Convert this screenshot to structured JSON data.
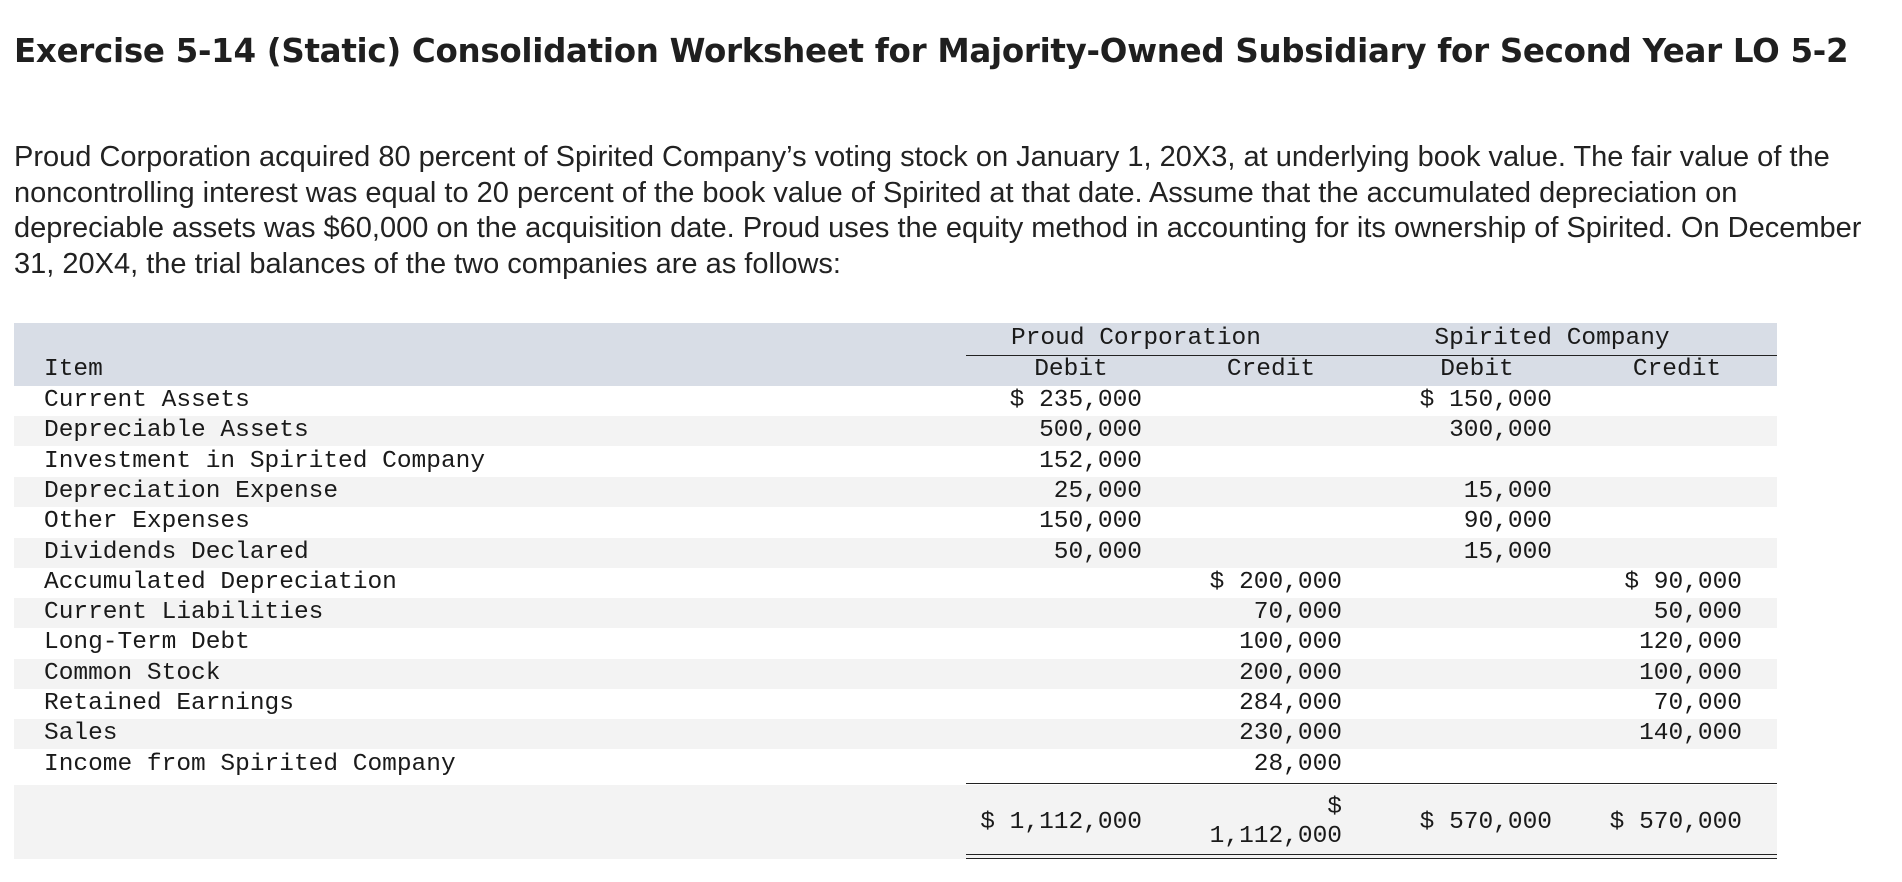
{
  "title": "Exercise 5-14 (Static) Consolidation Worksheet for Majority-Owned Subsidiary for Second Year LO 5-2",
  "intro": "Proud Corporation acquired 80 percent of Spirited Company’s voting stock on January 1, 20X3, at underlying book value. The fair value of the noncontrolling interest was equal to 20 percent of the book value of Spirited at that date. Assume that the accumulated depreciation on depreciable assets was $60,000 on the acquisition date. Proud uses the equity method in accounting for its ownership of Spirited. On December 31, 20X4, the trial balances of the two companies are as follows:",
  "table": {
    "groups": [
      "Proud Corporation",
      "Spirited Company"
    ],
    "headers": {
      "item": "Item",
      "proud_debit": "Debit",
      "proud_credit": "Credit",
      "spirited_debit": "Debit",
      "spirited_credit": "Credit"
    },
    "rows": [
      {
        "item": "Current Assets",
        "pd": "$ 235,000",
        "pc": "",
        "sd": "$ 150,000",
        "sc": ""
      },
      {
        "item": "Depreciable Assets",
        "pd": "500,000",
        "pc": "",
        "sd": "300,000",
        "sc": ""
      },
      {
        "item": "Investment in Spirited Company",
        "pd": "152,000",
        "pc": "",
        "sd": "",
        "sc": ""
      },
      {
        "item": "Depreciation Expense",
        "pd": "25,000",
        "pc": "",
        "sd": "15,000",
        "sc": ""
      },
      {
        "item": "Other Expenses",
        "pd": "150,000",
        "pc": "",
        "sd": "90,000",
        "sc": ""
      },
      {
        "item": "Dividends Declared",
        "pd": "50,000",
        "pc": "",
        "sd": "15,000",
        "sc": ""
      },
      {
        "item": "Accumulated Depreciation",
        "pd": "",
        "pc": "$ 200,000",
        "sd": "",
        "sc": "$ 90,000"
      },
      {
        "item": "Current Liabilities",
        "pd": "",
        "pc": "70,000",
        "sd": "",
        "sc": "50,000"
      },
      {
        "item": "Long-Term Debt",
        "pd": "",
        "pc": "100,000",
        "sd": "",
        "sc": "120,000"
      },
      {
        "item": "Common Stock",
        "pd": "",
        "pc": "200,000",
        "sd": "",
        "sc": "100,000"
      },
      {
        "item": "Retained Earnings",
        "pd": "",
        "pc": "284,000",
        "sd": "",
        "sc": "70,000"
      },
      {
        "item": "Sales",
        "pd": "",
        "pc": "230,000",
        "sd": "",
        "sc": "140,000"
      },
      {
        "item": "Income from Spirited Company",
        "pd": "",
        "pc": "28,000",
        "sd": "",
        "sc": ""
      }
    ],
    "totals": {
      "pd": "$ 1,112,000",
      "pc_symbol": "$",
      "pc_amount": "1,112,000",
      "sd": "$ 570,000",
      "sc": "$ 570,000"
    }
  }
}
